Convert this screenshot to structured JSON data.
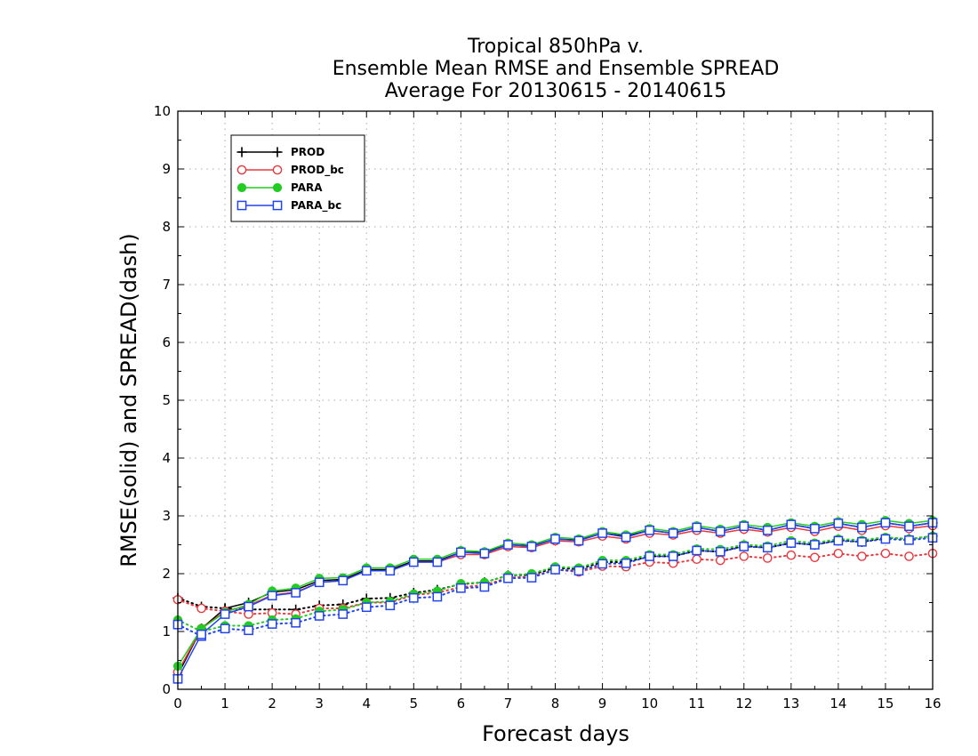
{
  "chart_data": {
    "type": "line",
    "title": [
      "Tropical 850hPa v.",
      "Ensemble Mean RMSE and Ensemble SPREAD",
      "Average For 20130615 - 20140615"
    ],
    "xlabel": "Forecast days",
    "ylabel": "RMSE(solid) and SPREAD(dash)",
    "xlim": [
      0,
      16
    ],
    "ylim": [
      0,
      10
    ],
    "xticks": [
      0,
      1,
      2,
      3,
      4,
      5,
      6,
      7,
      8,
      9,
      10,
      11,
      12,
      13,
      14,
      15,
      16
    ],
    "yticks": [
      0,
      1,
      2,
      3,
      4,
      5,
      6,
      7,
      8,
      9,
      10
    ],
    "grid": true,
    "legend_position": "top-left",
    "x": [
      0,
      0.5,
      1,
      1.5,
      2,
      2.5,
      3,
      3.5,
      4,
      4.5,
      5,
      5.5,
      6,
      6.5,
      7,
      7.5,
      8,
      8.5,
      9,
      9.5,
      10,
      10.5,
      11,
      11.5,
      12,
      12.5,
      13,
      13.5,
      14,
      14.5,
      15,
      15.5,
      16
    ],
    "series": [
      {
        "name": "PROD",
        "color": "#000000",
        "marker": "plus",
        "rmse": [
          0.25,
          1.05,
          1.4,
          1.5,
          1.68,
          1.72,
          1.88,
          1.9,
          2.07,
          2.07,
          2.22,
          2.22,
          2.37,
          2.37,
          2.5,
          2.48,
          2.6,
          2.58,
          2.7,
          2.65,
          2.75,
          2.7,
          2.8,
          2.73,
          2.82,
          2.75,
          2.85,
          2.78,
          2.87,
          2.8,
          2.88,
          2.82,
          2.88
        ],
        "spread": [
          1.58,
          1.43,
          1.4,
          1.38,
          1.38,
          1.38,
          1.45,
          1.47,
          1.57,
          1.58,
          1.67,
          1.72,
          1.82,
          1.85,
          1.97,
          1.98,
          2.1,
          2.08,
          2.2,
          2.2,
          2.3,
          2.3,
          2.4,
          2.38,
          2.48,
          2.45,
          2.53,
          2.5,
          2.58,
          2.55,
          2.62,
          2.6,
          2.65
        ]
      },
      {
        "name": "PROD_bc",
        "color": "#e8383d",
        "marker": "circle",
        "rmse": [
          0.3,
          1.05,
          1.35,
          1.45,
          1.63,
          1.68,
          1.85,
          1.88,
          2.05,
          2.05,
          2.2,
          2.2,
          2.33,
          2.33,
          2.47,
          2.45,
          2.57,
          2.55,
          2.65,
          2.6,
          2.7,
          2.67,
          2.75,
          2.7,
          2.77,
          2.72,
          2.8,
          2.73,
          2.82,
          2.75,
          2.83,
          2.78,
          2.83
        ],
        "spread": [
          1.55,
          1.4,
          1.35,
          1.3,
          1.32,
          1.3,
          1.4,
          1.4,
          1.5,
          1.5,
          1.63,
          1.67,
          1.77,
          1.8,
          1.93,
          1.95,
          2.07,
          2.03,
          2.13,
          2.12,
          2.2,
          2.18,
          2.25,
          2.23,
          2.3,
          2.27,
          2.32,
          2.28,
          2.35,
          2.3,
          2.35,
          2.3,
          2.35
        ]
      },
      {
        "name": "PARA",
        "color": "#22cc22",
        "marker": "filled-circle",
        "rmse": [
          0.4,
          1.05,
          1.33,
          1.47,
          1.7,
          1.75,
          1.92,
          1.93,
          2.1,
          2.1,
          2.25,
          2.25,
          2.4,
          2.38,
          2.53,
          2.5,
          2.63,
          2.6,
          2.73,
          2.67,
          2.78,
          2.73,
          2.83,
          2.77,
          2.85,
          2.8,
          2.88,
          2.82,
          2.9,
          2.85,
          2.92,
          2.87,
          2.92
        ],
        "spread": [
          1.2,
          1.0,
          1.1,
          1.1,
          1.2,
          1.22,
          1.35,
          1.38,
          1.5,
          1.52,
          1.65,
          1.7,
          1.83,
          1.85,
          1.97,
          2.0,
          2.12,
          2.1,
          2.23,
          2.23,
          2.33,
          2.33,
          2.43,
          2.42,
          2.5,
          2.48,
          2.57,
          2.53,
          2.6,
          2.58,
          2.63,
          2.6,
          2.65
        ]
      },
      {
        "name": "PARA_bc",
        "color": "#2244ee",
        "marker": "square",
        "rmse": [
          0.18,
          0.95,
          1.3,
          1.43,
          1.62,
          1.67,
          1.85,
          1.88,
          2.05,
          2.05,
          2.2,
          2.2,
          2.37,
          2.35,
          2.5,
          2.47,
          2.6,
          2.57,
          2.7,
          2.63,
          2.75,
          2.7,
          2.8,
          2.73,
          2.82,
          2.75,
          2.85,
          2.78,
          2.87,
          2.8,
          2.88,
          2.82,
          2.88
        ],
        "spread": [
          1.12,
          0.92,
          1.05,
          1.02,
          1.13,
          1.15,
          1.27,
          1.3,
          1.42,
          1.45,
          1.58,
          1.6,
          1.75,
          1.77,
          1.92,
          1.93,
          2.07,
          2.05,
          2.17,
          2.18,
          2.3,
          2.3,
          2.4,
          2.38,
          2.47,
          2.45,
          2.53,
          2.5,
          2.57,
          2.55,
          2.6,
          2.58,
          2.62
        ]
      }
    ]
  }
}
